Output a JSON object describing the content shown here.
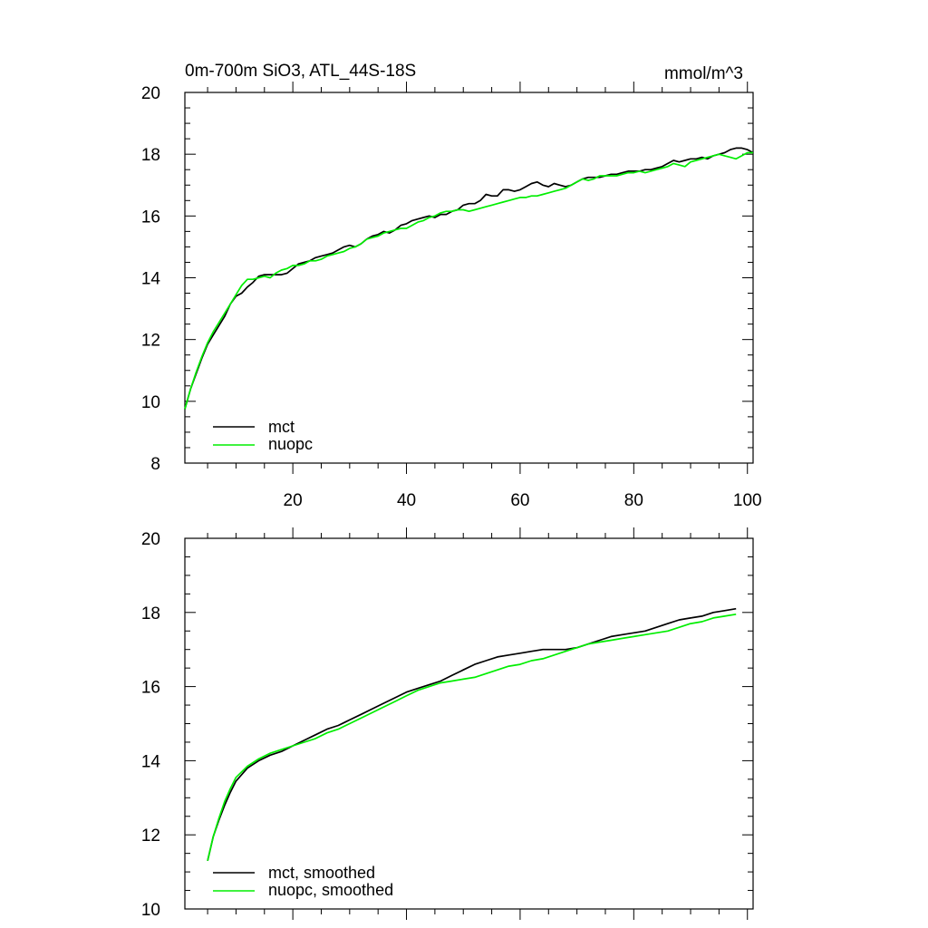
{
  "chart_data": [
    {
      "type": "line",
      "title": "0m-700m SiO3, ATL_44S-18S",
      "units": "mmol/m^3",
      "xlim": [
        1,
        101
      ],
      "ylim": [
        8,
        20
      ],
      "xticks": [
        20,
        40,
        60,
        80,
        100
      ],
      "yticks": [
        8,
        10,
        12,
        14,
        16,
        18,
        20
      ],
      "xtick_labels": [
        "20",
        "40",
        "60",
        "80",
        "100"
      ],
      "ytick_labels": [
        "8",
        "10",
        "12",
        "14",
        "16",
        "18",
        "20"
      ],
      "show_xtick_labels": true,
      "grid": false,
      "legend": "bottom-left",
      "series": [
        {
          "name": "mct",
          "color": "#000000",
          "x": [
            1,
            2,
            3,
            4,
            5,
            6,
            7,
            8,
            9,
            10,
            11,
            12,
            13,
            14,
            15,
            16,
            17,
            18,
            19,
            20,
            21,
            22,
            23,
            24,
            25,
            26,
            27,
            28,
            29,
            30,
            31,
            32,
            33,
            34,
            35,
            36,
            37,
            38,
            39,
            40,
            41,
            42,
            43,
            44,
            45,
            46,
            47,
            48,
            49,
            50,
            51,
            52,
            53,
            54,
            55,
            56,
            57,
            58,
            59,
            60,
            61,
            62,
            63,
            64,
            65,
            66,
            67,
            68,
            69,
            70,
            71,
            72,
            73,
            74,
            75,
            76,
            77,
            78,
            79,
            80,
            81,
            82,
            83,
            84,
            85,
            86,
            87,
            88,
            89,
            90,
            91,
            92,
            93,
            94,
            95,
            96,
            97,
            98,
            99,
            100,
            101
          ],
          "y": [
            9.75,
            10.4,
            10.9,
            11.4,
            11.85,
            12.15,
            12.45,
            12.75,
            13.15,
            13.4,
            13.5,
            13.7,
            13.85,
            14.05,
            14.1,
            14.1,
            14.1,
            14.1,
            14.15,
            14.3,
            14.45,
            14.5,
            14.55,
            14.65,
            14.7,
            14.75,
            14.8,
            14.9,
            15.0,
            15.05,
            15.0,
            15.1,
            15.25,
            15.35,
            15.4,
            15.5,
            15.45,
            15.55,
            15.7,
            15.75,
            15.85,
            15.9,
            15.95,
            16.0,
            15.95,
            16.05,
            16.05,
            16.15,
            16.2,
            16.35,
            16.4,
            16.4,
            16.5,
            16.7,
            16.65,
            16.65,
            16.85,
            16.85,
            16.8,
            16.85,
            16.95,
            17.05,
            17.1,
            17.0,
            16.95,
            17.05,
            17.0,
            16.95,
            17.0,
            17.1,
            17.2,
            17.25,
            17.25,
            17.25,
            17.3,
            17.35,
            17.35,
            17.4,
            17.45,
            17.45,
            17.45,
            17.5,
            17.5,
            17.55,
            17.6,
            17.7,
            17.8,
            17.75,
            17.8,
            17.85,
            17.85,
            17.9,
            17.85,
            17.95,
            18.0,
            18.05,
            18.15,
            18.2,
            18.2,
            18.15,
            18.05
          ]
        },
        {
          "name": "nuopc",
          "color": "#00ee00",
          "x": [
            1,
            2,
            3,
            4,
            5,
            6,
            7,
            8,
            9,
            10,
            11,
            12,
            13,
            14,
            15,
            16,
            17,
            18,
            19,
            20,
            21,
            22,
            23,
            24,
            25,
            26,
            27,
            28,
            29,
            30,
            31,
            32,
            33,
            34,
            35,
            36,
            37,
            38,
            39,
            40,
            41,
            42,
            43,
            44,
            45,
            46,
            47,
            48,
            49,
            50,
            51,
            52,
            53,
            54,
            55,
            56,
            57,
            58,
            59,
            60,
            61,
            62,
            63,
            64,
            65,
            66,
            67,
            68,
            69,
            70,
            71,
            72,
            73,
            74,
            75,
            76,
            77,
            78,
            79,
            80,
            81,
            82,
            83,
            84,
            85,
            86,
            87,
            88,
            89,
            90,
            91,
            92,
            93,
            94,
            95,
            96,
            97,
            98,
            99,
            100,
            101
          ],
          "y": [
            9.75,
            10.4,
            10.95,
            11.45,
            11.9,
            12.25,
            12.55,
            12.85,
            13.15,
            13.45,
            13.75,
            13.95,
            13.95,
            14.0,
            14.05,
            14.0,
            14.15,
            14.25,
            14.3,
            14.4,
            14.4,
            14.45,
            14.55,
            14.55,
            14.6,
            14.7,
            14.75,
            14.8,
            14.85,
            14.95,
            15.0,
            15.1,
            15.25,
            15.3,
            15.35,
            15.45,
            15.5,
            15.55,
            15.6,
            15.6,
            15.7,
            15.8,
            15.85,
            15.95,
            16.0,
            16.1,
            16.15,
            16.15,
            16.2,
            16.2,
            16.15,
            16.2,
            16.25,
            16.3,
            16.35,
            16.4,
            16.45,
            16.5,
            16.55,
            16.6,
            16.6,
            16.65,
            16.65,
            16.7,
            16.75,
            16.8,
            16.85,
            16.9,
            17.0,
            17.1,
            17.2,
            17.15,
            17.2,
            17.3,
            17.3,
            17.3,
            17.3,
            17.35,
            17.4,
            17.4,
            17.45,
            17.4,
            17.45,
            17.5,
            17.55,
            17.6,
            17.7,
            17.65,
            17.6,
            17.75,
            17.8,
            17.85,
            17.9,
            17.95,
            18.0,
            17.95,
            17.9,
            17.85,
            17.95,
            18.05,
            18.05
          ]
        }
      ]
    },
    {
      "type": "line",
      "title": "",
      "xlim": [
        1,
        101
      ],
      "ylim": [
        10,
        20
      ],
      "xticks": [
        20,
        40,
        60,
        80,
        100
      ],
      "yticks": [
        10,
        12,
        14,
        16,
        18,
        20
      ],
      "xtick_labels": [
        "",
        "",
        "",
        "",
        ""
      ],
      "ytick_labels": [
        "10",
        "12",
        "14",
        "16",
        "18",
        "20"
      ],
      "show_xtick_labels": false,
      "grid": false,
      "legend": "bottom-left",
      "series": [
        {
          "name": "mct, smoothed",
          "color": "#000000",
          "x": [
            5,
            6,
            7,
            8,
            9,
            10,
            12,
            14,
            16,
            18,
            20,
            22,
            24,
            26,
            28,
            30,
            32,
            34,
            36,
            38,
            40,
            42,
            44,
            46,
            48,
            50,
            52,
            54,
            56,
            58,
            60,
            62,
            64,
            66,
            68,
            70,
            72,
            74,
            76,
            78,
            80,
            82,
            84,
            86,
            88,
            90,
            92,
            94,
            96,
            98
          ],
          "y": [
            11.3,
            11.95,
            12.4,
            12.8,
            13.15,
            13.45,
            13.8,
            14.0,
            14.15,
            14.25,
            14.4,
            14.55,
            14.7,
            14.85,
            14.95,
            15.1,
            15.25,
            15.4,
            15.55,
            15.7,
            15.85,
            15.95,
            16.05,
            16.15,
            16.3,
            16.45,
            16.6,
            16.7,
            16.8,
            16.85,
            16.9,
            16.95,
            17.0,
            17.0,
            17.0,
            17.05,
            17.15,
            17.25,
            17.35,
            17.4,
            17.45,
            17.5,
            17.6,
            17.7,
            17.8,
            17.85,
            17.9,
            18.0,
            18.05,
            18.1
          ]
        },
        {
          "name": "nuopc, smoothed",
          "color": "#00ee00",
          "x": [
            5,
            6,
            7,
            8,
            9,
            10,
            12,
            14,
            16,
            18,
            20,
            22,
            24,
            26,
            28,
            30,
            32,
            34,
            36,
            38,
            40,
            42,
            44,
            46,
            48,
            50,
            52,
            54,
            56,
            58,
            60,
            62,
            64,
            66,
            68,
            70,
            72,
            74,
            76,
            78,
            80,
            82,
            84,
            86,
            88,
            90,
            92,
            94,
            96,
            98
          ],
          "y": [
            11.3,
            11.95,
            12.45,
            12.9,
            13.25,
            13.55,
            13.85,
            14.05,
            14.2,
            14.3,
            14.4,
            14.5,
            14.6,
            14.75,
            14.85,
            15.0,
            15.15,
            15.3,
            15.45,
            15.6,
            15.75,
            15.9,
            16.0,
            16.1,
            16.15,
            16.2,
            16.25,
            16.35,
            16.45,
            16.55,
            16.6,
            16.7,
            16.75,
            16.85,
            16.95,
            17.05,
            17.15,
            17.2,
            17.25,
            17.3,
            17.35,
            17.4,
            17.45,
            17.5,
            17.6,
            17.7,
            17.75,
            17.85,
            17.9,
            17.95
          ]
        }
      ]
    }
  ]
}
